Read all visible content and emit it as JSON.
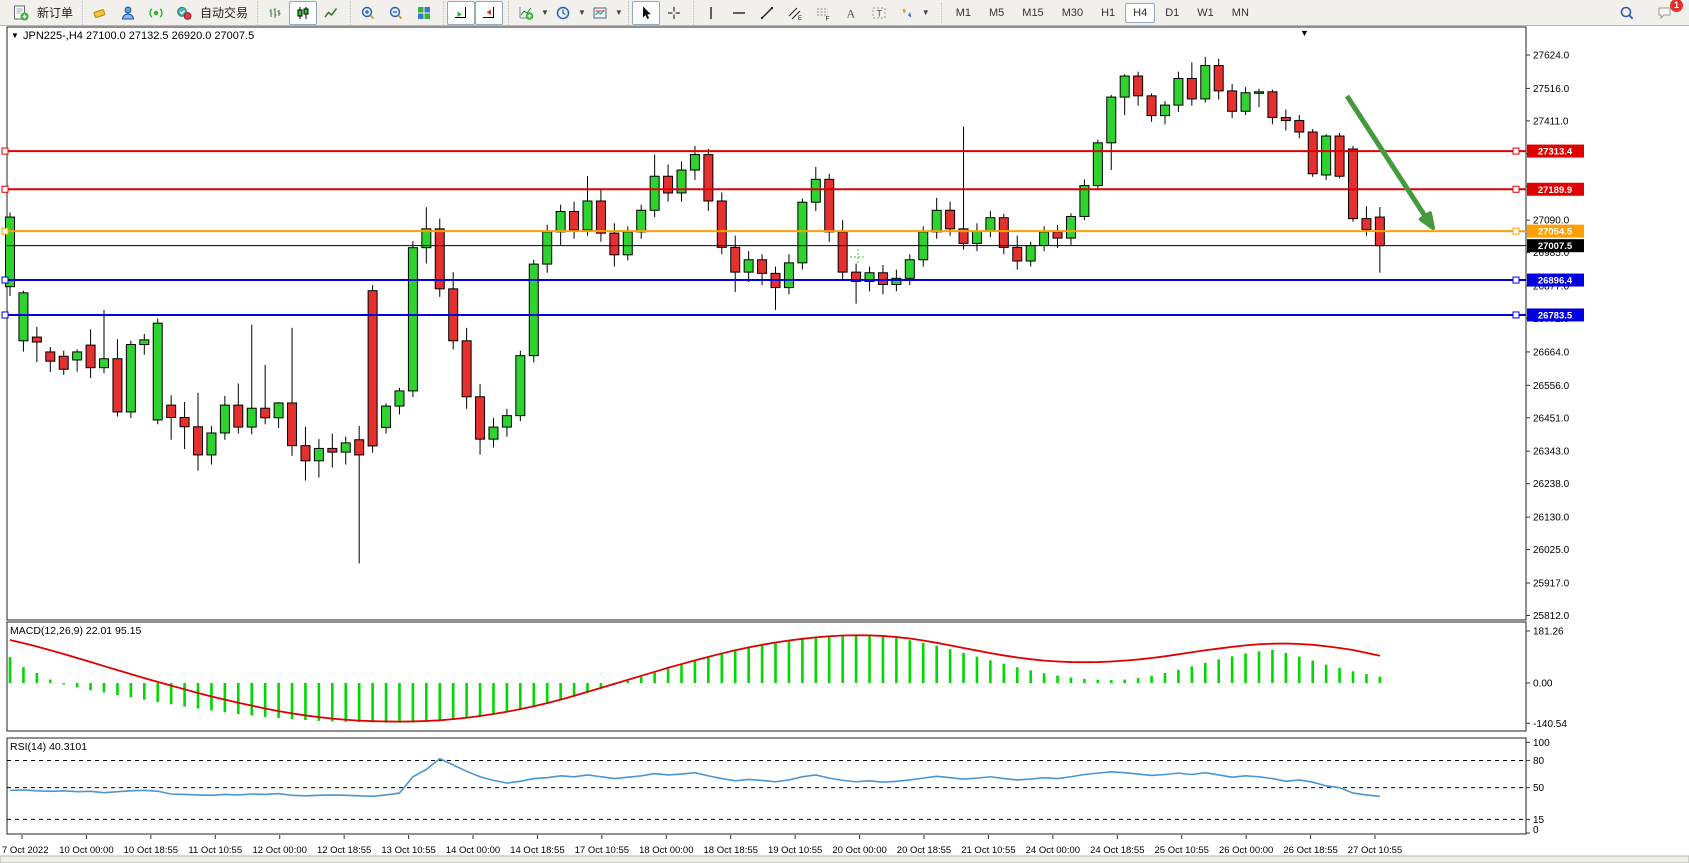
{
  "toolbar": {
    "groups": [
      {
        "items": [
          {
            "icon": "new-order-icon",
            "label": "新订单"
          }
        ]
      },
      {
        "items": [
          {
            "icon": "eraser-icon"
          },
          {
            "icon": "profile-icon"
          },
          {
            "icon": "signal-icon"
          },
          {
            "icon": "autotrade-icon",
            "label": "自动交易"
          }
        ]
      },
      {
        "items": [
          {
            "icon": "bar-chart-icon"
          },
          {
            "icon": "candlestick-icon",
            "pressed": true
          },
          {
            "icon": "line-chart-icon"
          }
        ]
      },
      {
        "items": [
          {
            "icon": "zoom-in-icon"
          },
          {
            "icon": "zoom-out-icon"
          },
          {
            "icon": "tile-windows-icon"
          }
        ]
      },
      {
        "items": [
          {
            "icon": "auto-scroll-icon",
            "pressed": true
          },
          {
            "icon": "chart-shift-icon",
            "pressed": true
          }
        ]
      },
      {
        "items": [
          {
            "icon": "indicators-icon",
            "dropdown": true
          },
          {
            "icon": "periods-icon",
            "dropdown": true
          },
          {
            "icon": "templates-icon",
            "dropdown": true
          }
        ]
      },
      {
        "items": [
          {
            "icon": "cursor-icon",
            "pressed": true
          },
          {
            "icon": "crosshair-icon"
          }
        ]
      },
      {
        "items": [
          {
            "icon": "vertical-line-icon"
          },
          {
            "icon": "horizontal-line-icon"
          },
          {
            "icon": "trendline-icon"
          },
          {
            "icon": "channel-icon"
          },
          {
            "icon": "fibonacci-icon"
          },
          {
            "icon": "text-icon"
          },
          {
            "icon": "label-icon"
          },
          {
            "icon": "arrows-icon",
            "dropdown": true
          }
        ]
      }
    ],
    "timeframes": [
      "M1",
      "M5",
      "M15",
      "M30",
      "H1",
      "H4",
      "D1",
      "W1",
      "MN"
    ],
    "active_timeframe": "H4",
    "notification_count": "1"
  },
  "chart": {
    "symbol_line": {
      "marker": "▼",
      "symbol": "JPN225-,H4",
      "open": "27100.0",
      "high": "27132.5",
      "low": "26920.0",
      "close": "27007.5"
    },
    "scroll_marker": "▼",
    "price_axis": {
      "ticks": [
        "27624.0",
        "27516.0",
        "27411.0",
        "27305.0",
        "27199.0",
        "27090.0",
        "26985.0",
        "26877.0",
        "26772.0",
        "26664.0",
        "26556.0",
        "26451.0",
        "26343.0",
        "26238.0",
        "26130.0",
        "26025.0",
        "25917.0",
        "25812.0"
      ]
    },
    "levels": [
      {
        "label": "27313.4",
        "price": 27313.4,
        "color": "#e00000",
        "width": 2
      },
      {
        "label": "27189.9",
        "price": 27189.9,
        "color": "#e00000",
        "width": 2
      },
      {
        "label": "27054.5",
        "price": 27054.5,
        "color": "#ffa000",
        "width": 2
      },
      {
        "label": "27007.5",
        "price": 27007.5,
        "color": "#000000",
        "width": 1,
        "current": true
      },
      {
        "label": "26896.4",
        "price": 26896.4,
        "color": "#0000e0",
        "width": 2
      },
      {
        "label": "26783.5",
        "price": 26783.5,
        "color": "#0000e0",
        "width": 2
      }
    ],
    "colors": {
      "bull": "#2fd32f",
      "bear": "#e53030",
      "wick": "#000000",
      "arrow": "#449a3c"
    },
    "candles": [
      [
        26875,
        27115,
        26845,
        27100
      ],
      [
        26700,
        26862,
        26665,
        26855
      ],
      [
        26712,
        26745,
        26631,
        26696
      ],
      [
        26664,
        26680,
        26599,
        26634
      ],
      [
        26650,
        26668,
        26590,
        26608
      ],
      [
        26638,
        26672,
        26600,
        26664
      ],
      [
        26686,
        26737,
        26580,
        26613
      ],
      [
        26613,
        26800,
        26595,
        26642
      ],
      [
        26642,
        26705,
        26455,
        26470
      ],
      [
        26470,
        26700,
        26450,
        26688
      ],
      [
        26688,
        26722,
        26655,
        26703
      ],
      [
        26444,
        26772,
        26430,
        26757
      ],
      [
        26492,
        26524,
        26380,
        26452
      ],
      [
        26452,
        26502,
        26350,
        26422
      ],
      [
        26422,
        26532,
        26280,
        26331
      ],
      [
        26331,
        26424,
        26300,
        26402
      ],
      [
        26402,
        26522,
        26380,
        26492
      ],
      [
        26492,
        26562,
        26400,
        26421
      ],
      [
        26421,
        26752,
        26398,
        26482
      ],
      [
        26482,
        26622,
        26430,
        26451
      ],
      [
        26451,
        26502,
        26418,
        26499
      ],
      [
        26499,
        26742,
        26328,
        26361
      ],
      [
        26361,
        26422,
        26248,
        26312
      ],
      [
        26312,
        26382,
        26258,
        26352
      ],
      [
        26352,
        26400,
        26290,
        26340
      ],
      [
        26340,
        26390,
        26300,
        26370
      ],
      [
        26380,
        26425,
        25980,
        26331
      ],
      [
        26862,
        26880,
        26338,
        26360
      ],
      [
        26420,
        26498,
        26400,
        26489
      ],
      [
        26489,
        26548,
        26462,
        26538
      ],
      [
        26538,
        27022,
        26518,
        27001
      ],
      [
        27001,
        27132,
        26950,
        27062
      ],
      [
        27062,
        27095,
        26842,
        26868
      ],
      [
        26868,
        26922,
        26672,
        26700
      ],
      [
        26700,
        26742,
        26480,
        26519
      ],
      [
        26519,
        26560,
        26332,
        26382
      ],
      [
        26382,
        26450,
        26355,
        26421
      ],
      [
        26421,
        26480,
        26390,
        26458
      ],
      [
        26458,
        26668,
        26440,
        26652
      ],
      [
        26652,
        26962,
        26630,
        26948
      ],
      [
        26948,
        27075,
        26920,
        27052
      ],
      [
        27052,
        27140,
        27010,
        27118
      ],
      [
        27118,
        27150,
        27030,
        27058
      ],
      [
        27058,
        27232,
        27040,
        27152
      ],
      [
        27152,
        27190,
        27020,
        27048
      ],
      [
        27048,
        27080,
        26940,
        26978
      ],
      [
        26978,
        27070,
        26960,
        27052
      ],
      [
        27052,
        27140,
        27030,
        27122
      ],
      [
        27122,
        27302,
        27100,
        27232
      ],
      [
        27232,
        27270,
        27150,
        27178
      ],
      [
        27178,
        27280,
        27150,
        27252
      ],
      [
        27252,
        27330,
        27220,
        27302
      ],
      [
        27302,
        27320,
        27120,
        27152
      ],
      [
        27152,
        27180,
        26980,
        27002
      ],
      [
        27002,
        27040,
        26858,
        26922
      ],
      [
        26922,
        26990,
        26890,
        26962
      ],
      [
        26962,
        26980,
        26880,
        26918
      ],
      [
        26918,
        26940,
        26800,
        26872
      ],
      [
        26872,
        26980,
        26850,
        26952
      ],
      [
        26952,
        27160,
        26930,
        27148
      ],
      [
        27148,
        27262,
        27120,
        27222
      ],
      [
        27222,
        27240,
        27020,
        27052
      ],
      [
        27052,
        27090,
        26900,
        26922
      ],
      [
        26922,
        26950,
        26820,
        26892
      ],
      [
        26892,
        26940,
        26860,
        26920
      ],
      [
        26920,
        26945,
        26850,
        26882
      ],
      [
        26882,
        26930,
        26860,
        26902
      ],
      [
        26902,
        26980,
        26880,
        26962
      ],
      [
        26962,
        27070,
        26940,
        27052
      ],
      [
        27052,
        27162,
        27030,
        27122
      ],
      [
        27122,
        27150,
        27040,
        27062
      ],
      [
        27062,
        27392,
        26995,
        27015
      ],
      [
        27015,
        27080,
        26990,
        27055
      ],
      [
        27055,
        27120,
        27035,
        27098
      ],
      [
        27098,
        27110,
        26980,
        27002
      ],
      [
        27002,
        27040,
        26930,
        26958
      ],
      [
        26958,
        27020,
        26940,
        27008
      ],
      [
        27008,
        27070,
        26990,
        27052
      ],
      [
        27052,
        27075,
        27000,
        27032
      ],
      [
        27032,
        27112,
        27010,
        27102
      ],
      [
        27102,
        27222,
        27090,
        27202
      ],
      [
        27202,
        27350,
        27190,
        27340
      ],
      [
        27340,
        27495,
        27252,
        27488
      ],
      [
        27488,
        27562,
        27430,
        27556
      ],
      [
        27556,
        27570,
        27460,
        27492
      ],
      [
        27492,
        27500,
        27408,
        27428
      ],
      [
        27428,
        27475,
        27400,
        27462
      ],
      [
        27462,
        27570,
        27440,
        27548
      ],
      [
        27548,
        27600,
        27460,
        27482
      ],
      [
        27482,
        27618,
        27470,
        27590
      ],
      [
        27590,
        27612,
        27480,
        27508
      ],
      [
        27508,
        27530,
        27420,
        27442
      ],
      [
        27442,
        27520,
        27430,
        27502
      ],
      [
        27502,
        27515,
        27455,
        27505
      ],
      [
        27505,
        27512,
        27400,
        27422
      ],
      [
        27422,
        27448,
        27380,
        27412
      ],
      [
        27412,
        27430,
        27355,
        27375
      ],
      [
        27375,
        27385,
        27230,
        27240
      ],
      [
        27236,
        27368,
        27220,
        27362
      ],
      [
        27362,
        27372,
        27225,
        27232
      ],
      [
        27320,
        27330,
        27085,
        27095
      ],
      [
        27095,
        27135,
        27040,
        27060
      ],
      [
        27100,
        27132.5,
        26920,
        27007.5
      ]
    ],
    "x_axis": [
      "7 Oct 2022",
      "10 Oct 00:00",
      "10 Oct 18:55",
      "11 Oct 10:55",
      "12 Oct 00:00",
      "12 Oct 18:55",
      "13 Oct 10:55",
      "14 Oct 00:00",
      "14 Oct 18:55",
      "17 Oct 10:55",
      "18 Oct 00:00",
      "18 Oct 18:55",
      "19 Oct 10:55",
      "20 Oct 00:00",
      "20 Oct 18:55",
      "21 Oct 10:55",
      "24 Oct 00:00",
      "24 Oct 18:55",
      "25 Oct 10:55",
      "26 Oct 00:00",
      "26 Oct 18:55",
      "27 Oct 10:55"
    ]
  },
  "macd": {
    "label": "MACD(12,26,9) 22.01 95.15",
    "axis": [
      "181.26",
      "0.00",
      "-140.54"
    ],
    "colors": {
      "histogram": "#00d800",
      "signal": "#e00000"
    },
    "histogram": [
      90,
      55,
      35,
      12,
      -5,
      -15,
      -25,
      -33,
      -42,
      -50,
      -58,
      -66,
      -74,
      -82,
      -89,
      -96,
      -102,
      -108,
      -113,
      -118,
      -122,
      -126,
      -129,
      -132,
      -134,
      -135,
      -136,
      -137,
      -138,
      -138,
      -137,
      -135,
      -132,
      -128,
      -123,
      -117,
      -110,
      -102,
      -93,
      -83,
      -72,
      -60,
      -47,
      -34,
      -20,
      -6,
      8,
      22,
      36,
      50,
      64,
      77,
      90,
      102,
      113,
      123,
      132,
      140,
      147,
      153,
      158,
      162,
      164,
      165,
      164,
      161,
      156,
      149,
      140,
      130,
      118,
      105,
      92,
      79,
      67,
      55,
      44,
      34,
      26,
      19,
      14,
      11,
      10,
      12,
      17,
      25,
      35,
      46,
      58,
      70,
      82,
      93,
      103,
      110,
      115,
      105,
      92,
      78,
      64,
      52,
      41,
      31,
      22
    ],
    "signal": [
      150,
      139,
      127,
      114,
      101,
      87,
      73,
      59,
      45,
      31,
      17,
      4,
      -9,
      -22,
      -35,
      -47,
      -58,
      -69,
      -79,
      -89,
      -98,
      -106,
      -113,
      -119,
      -124,
      -128,
      -131,
      -133,
      -134,
      -134.5,
      -134,
      -132.5,
      -130,
      -126,
      -121,
      -115,
      -108,
      -100,
      -91,
      -81,
      -70,
      -58,
      -45,
      -31,
      -17,
      -3,
      11,
      25,
      39,
      53,
      66,
      79,
      91,
      103,
      114,
      124,
      133,
      141,
      148,
      154,
      159,
      163,
      165.5,
      166.5,
      166,
      164,
      160,
      155,
      148,
      140,
      131,
      122,
      113,
      104,
      96,
      89,
      83,
      78,
      75,
      73,
      72.5,
      73,
      75,
      78,
      82,
      87,
      93,
      100,
      107,
      114,
      120,
      126,
      131,
      135,
      137,
      137.5,
      136,
      133,
      128,
      122,
      115,
      105,
      95
    ]
  },
  "rsi": {
    "label": "RSI(14) 40.3101",
    "axis": [
      "100",
      "80",
      "50",
      "15",
      "0"
    ],
    "level_lines": [
      80,
      50,
      15
    ],
    "color": "#4a96d2",
    "values": [
      47,
      47.5,
      46.5,
      46,
      46.5,
      45.5,
      46,
      44.5,
      45.5,
      46.5,
      47,
      46,
      43,
      42.5,
      42,
      41.5,
      42.5,
      42,
      43,
      42.5,
      43.5,
      41.5,
      41,
      41.5,
      42,
      41.5,
      41,
      40.5,
      42,
      44,
      62,
      70,
      82,
      75,
      68,
      62,
      58,
      55,
      57,
      60,
      61,
      63,
      62,
      64,
      62,
      60,
      61.5,
      63,
      65.5,
      64,
      65,
      66.5,
      63,
      60,
      57.5,
      59,
      58,
      56.5,
      58.5,
      62,
      64,
      60.5,
      58,
      56.5,
      57.5,
      56,
      57,
      58.5,
      60.5,
      62.5,
      61,
      59.5,
      60.5,
      62,
      60,
      58.5,
      59.5,
      61,
      60,
      62,
      64.5,
      66,
      67.5,
      66.5,
      65,
      63.5,
      64.5,
      66,
      64.5,
      66.5,
      64,
      61.5,
      63,
      62,
      60,
      57,
      58.5,
      56,
      52,
      50,
      44,
      42,
      40.31
    ]
  }
}
